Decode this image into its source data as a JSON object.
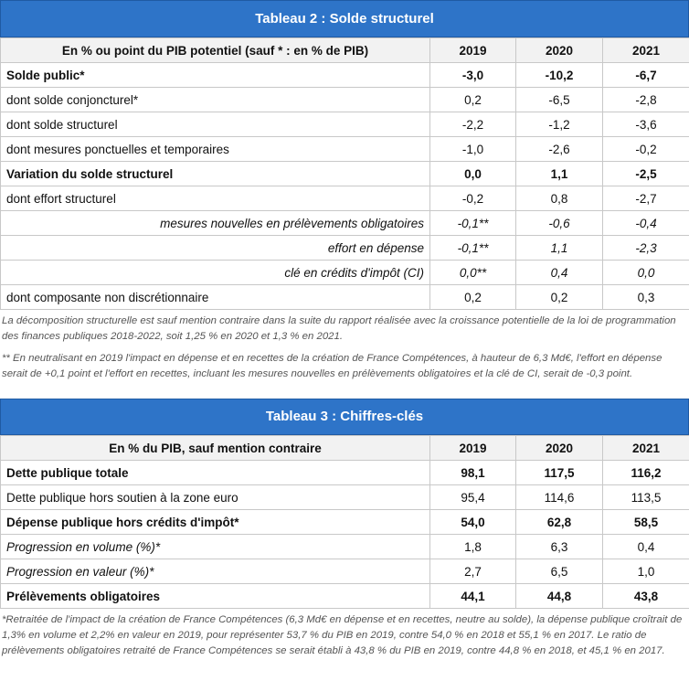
{
  "table2": {
    "title": "Tableau 2 : Solde structurel",
    "header": {
      "label": "En % ou point du PIB potentiel (sauf * : en % de PIB)",
      "years": [
        "2019",
        "2020",
        "2021"
      ]
    },
    "rows": [
      {
        "label": "Solde public*",
        "values": [
          "-3,0",
          "-10,2",
          "-6,7"
        ]
      },
      {
        "label": "dont solde conjoncturel*",
        "values": [
          "0,2",
          "-6,5",
          "-2,8"
        ]
      },
      {
        "label": "dont solde structurel",
        "values": [
          "-2,2",
          "-1,2",
          "-3,6"
        ]
      },
      {
        "label": "dont mesures ponctuelles et temporaires",
        "values": [
          "-1,0",
          "-2,6",
          "-0,2"
        ]
      },
      {
        "label": "Variation du solde structurel",
        "values": [
          "0,0",
          "1,1",
          "-2,5"
        ]
      },
      {
        "label": "dont effort structurel",
        "values": [
          "-0,2",
          "0,8",
          "-2,7"
        ]
      },
      {
        "label": "mesures nouvelles en prélèvements obligatoires",
        "values": [
          "-0,1**",
          "-0,6",
          "-0,4"
        ]
      },
      {
        "label": "effort en dépense",
        "values": [
          "-0,1**",
          "1,1",
          "-2,3"
        ]
      },
      {
        "label": "clé en crédits d'impôt (CI)",
        "values": [
          "0,0**",
          "0,4",
          "0,0"
        ]
      },
      {
        "label": "dont composante non discrétionnaire",
        "values": [
          "0,2",
          "0,2",
          "0,3"
        ]
      }
    ],
    "note1": "La décomposition structurelle est sauf mention contraire dans la suite du rapport réalisée avec la croissance potentielle de la loi de programmation des finances publiques 2018-2022, soit 1,25 % en 2020 et 1,3 % en 2021.",
    "note2": "** En neutralisant en 2019 l'impact en dépense et en recettes de la création de France Compétences, à hauteur de 6,3 Md€, l'effort en dépense serait de +0,1 point et l'effort en recettes, incluant les mesures nouvelles en prélèvements obligatoires et la clé de CI, serait de -0,3 point."
  },
  "table3": {
    "title": "Tableau 3 : Chiffres-clés",
    "header": {
      "label": "En % du PIB, sauf mention contraire",
      "years": [
        "2019",
        "2020",
        "2021"
      ]
    },
    "rows": [
      {
        "label": "Dette publique totale",
        "values": [
          "98,1",
          "117,5",
          "116,2"
        ]
      },
      {
        "label": "Dette publique hors soutien à la zone euro",
        "values": [
          "95,4",
          "114,6",
          "113,5"
        ]
      },
      {
        "label": "Dépense publique hors crédits d'impôt*",
        "values": [
          "54,0",
          "62,8",
          "58,5"
        ]
      },
      {
        "label": "Progression en volume (%)*",
        "values": [
          "1,8",
          "6,3",
          "0,4"
        ]
      },
      {
        "label": "Progression en valeur (%)*",
        "values": [
          "2,7",
          "6,5",
          "1,0"
        ]
      },
      {
        "label": "Prélèvements obligatoires",
        "values": [
          "44,1",
          "44,8",
          "43,8"
        ]
      }
    ],
    "note": "*Retraitée de l'impact de la création de France Compétences (6,3 Md€ en dépense et en recettes, neutre au solde), la dépense publique croîtrait de 1,3% en volume et 2,2% en valeur en 2019, pour représenter 53,7 % du PIB en 2019, contre 54,0 % en 2018 et 55,1 % en 2017. Le ratio de prélèvements obligatoires retraité de France Compétences se serait établi à 43,8 % du PIB en 2019, contre 44,8 % en 2018, et 45,1 % en 2017."
  }
}
